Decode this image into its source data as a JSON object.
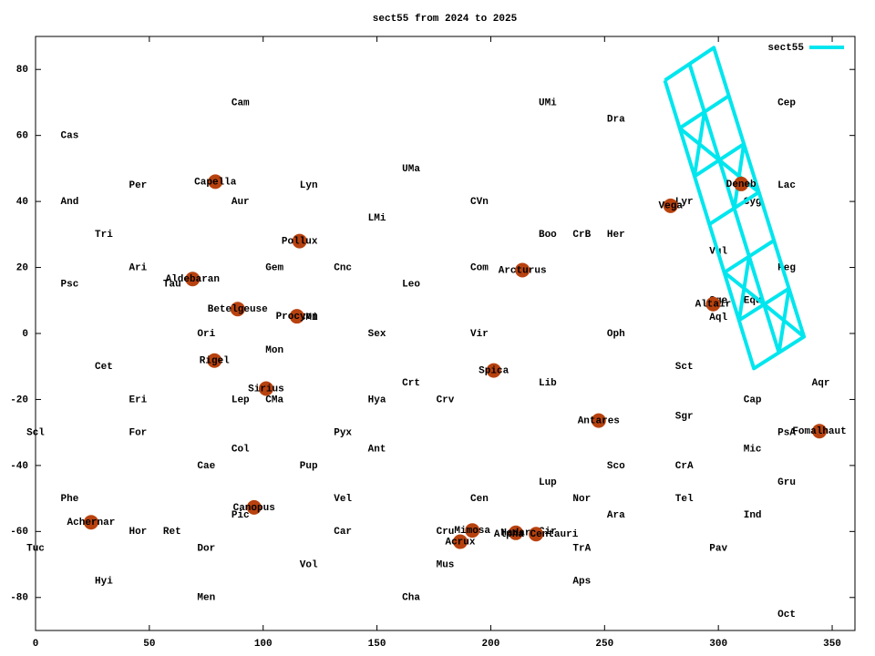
{
  "chart_data": {
    "type": "scatter",
    "title": "sect55 from 2024 to 2025",
    "xlim": [
      0,
      360
    ],
    "ylim": [
      -90,
      90
    ],
    "xticks": [
      0,
      50,
      100,
      150,
      200,
      250,
      300,
      350
    ],
    "yticks": [
      -80,
      -60,
      -40,
      -20,
      0,
      20,
      40,
      60,
      80
    ],
    "legend": "top right",
    "star_color": "#b8420f",
    "series": [
      {
        "name": "sect55",
        "color": "#00e6ee",
        "x": [
          276.5,
          315.6,
          337.6,
          298.0,
          276.5,
          null,
          287.3,
          326.6,
          null,
          283.0,
          304.6,
          null,
          289.5,
          311.2,
          null,
          296.1,
          317.8,
          null,
          302.6,
          324.4,
          null,
          309.1,
          331.0,
          null,
          283.0,
          300.4,
          null,
          293.9,
          289.5,
          null,
          300.4,
          317.8,
          null,
          311.2,
          307.0,
          null,
          302.6,
          320.1,
          null,
          313.5,
          309.1,
          null,
          320.1,
          337.6,
          null,
          331.0,
          326.6
        ],
        "y": [
          76.7,
          -10.6,
          -1.0,
          86.6,
          76.7,
          null,
          81.7,
          -5.8,
          null,
          62.2,
          72.0,
          null,
          47.6,
          57.4,
          null,
          33.1,
          42.8,
          null,
          18.5,
          28.2,
          null,
          4.0,
          13.6,
          null,
          62.2,
          52.5,
          null,
          67.1,
          47.6,
          null,
          52.5,
          42.8,
          null,
          57.4,
          37.9,
          null,
          18.5,
          8.8,
          null,
          23.4,
          4.0,
          null,
          8.8,
          -1.0,
          null,
          13.6,
          -5.8
        ]
      }
    ],
    "stars": [
      {
        "name": "Capella",
        "x": 79,
        "y": 46
      },
      {
        "name": "Deneb",
        "x": 310,
        "y": 45.3
      },
      {
        "name": "Vega",
        "x": 279,
        "y": 38.7
      },
      {
        "name": "Pollux",
        "x": 116,
        "y": 28
      },
      {
        "name": "Aldebaran",
        "x": 69,
        "y": 16.5
      },
      {
        "name": "Arcturus",
        "x": 213.9,
        "y": 19.2
      },
      {
        "name": "Betelgeuse",
        "x": 88.8,
        "y": 7.4
      },
      {
        "name": "Procyon",
        "x": 114.8,
        "y": 5.2
      },
      {
        "name": "Altair",
        "x": 297.7,
        "y": 8.9
      },
      {
        "name": "Rigel",
        "x": 78.6,
        "y": -8.2
      },
      {
        "name": "Sirius",
        "x": 101.3,
        "y": -16.7
      },
      {
        "name": "Spica",
        "x": 201.3,
        "y": -11.2
      },
      {
        "name": "Antares",
        "x": 247.4,
        "y": -26.4
      },
      {
        "name": "Fomalhaut",
        "x": 344.4,
        "y": -29.6
      },
      {
        "name": "Canopus",
        "x": 96,
        "y": -52.7
      },
      {
        "name": "Achernar",
        "x": 24.4,
        "y": -57.2
      },
      {
        "name": "Mimosa",
        "x": 191.9,
        "y": -59.7
      },
      {
        "name": "Acrux",
        "x": 186.6,
        "y": -63.1
      },
      {
        "name": "Hadar",
        "x": 211,
        "y": -60.4
      },
      {
        "name": "Alpha Centauri",
        "x": 219.9,
        "y": -60.8
      }
    ],
    "labels": [
      {
        "text": "Cam",
        "x": 90,
        "y": 70
      },
      {
        "text": "UMi",
        "x": 225,
        "y": 70
      },
      {
        "text": "Cep",
        "x": 330,
        "y": 70
      },
      {
        "text": "Cas",
        "x": 15,
        "y": 60
      },
      {
        "text": "Dra",
        "x": 255,
        "y": 65
      },
      {
        "text": "UMa",
        "x": 165,
        "y": 50
      },
      {
        "text": "Per",
        "x": 45,
        "y": 45
      },
      {
        "text": "Lyn",
        "x": 120,
        "y": 45
      },
      {
        "text": "Lac",
        "x": 330,
        "y": 45
      },
      {
        "text": "And",
        "x": 15,
        "y": 40
      },
      {
        "text": "Aur",
        "x": 90,
        "y": 40
      },
      {
        "text": "CVn",
        "x": 195,
        "y": 40
      },
      {
        "text": "Lyr",
        "x": 285,
        "y": 40
      },
      {
        "text": "Cyg",
        "x": 315,
        "y": 40
      },
      {
        "text": "LMi",
        "x": 150,
        "y": 35
      },
      {
        "text": "Tri",
        "x": 30,
        "y": 30
      },
      {
        "text": "Boo",
        "x": 225,
        "y": 30
      },
      {
        "text": "CrB",
        "x": 240,
        "y": 30
      },
      {
        "text": "Her",
        "x": 255,
        "y": 30
      },
      {
        "text": "Vul",
        "x": 300,
        "y": 25
      },
      {
        "text": "Ari",
        "x": 45,
        "y": 20
      },
      {
        "text": "Gem",
        "x": 105,
        "y": 20
      },
      {
        "text": "Cnc",
        "x": 135,
        "y": 20
      },
      {
        "text": "Com",
        "x": 195,
        "y": 20
      },
      {
        "text": "Peg",
        "x": 330,
        "y": 20
      },
      {
        "text": "Psc",
        "x": 15,
        "y": 15
      },
      {
        "text": "Tau",
        "x": 60,
        "y": 15
      },
      {
        "text": "Leo",
        "x": 165,
        "y": 15
      },
      {
        "text": "Sge",
        "x": 300,
        "y": 10
      },
      {
        "text": "Equ",
        "x": 315,
        "y": 10
      },
      {
        "text": "CMi",
        "x": 120,
        "y": 5
      },
      {
        "text": "Aql",
        "x": 300,
        "y": 5
      },
      {
        "text": "Ori",
        "x": 75,
        "y": 0
      },
      {
        "text": "Sex",
        "x": 150,
        "y": 0
      },
      {
        "text": "Vir",
        "x": 195,
        "y": 0
      },
      {
        "text": "Oph",
        "x": 255,
        "y": 0
      },
      {
        "text": "Mon",
        "x": 105,
        "y": -5
      },
      {
        "text": "Cet",
        "x": 30,
        "y": -10
      },
      {
        "text": "Sct",
        "x": 285,
        "y": -10
      },
      {
        "text": "Crt",
        "x": 165,
        "y": -15
      },
      {
        "text": "Lib",
        "x": 225,
        "y": -15
      },
      {
        "text": "Aqr",
        "x": 345,
        "y": -15
      },
      {
        "text": "Eri",
        "x": 45,
        "y": -20
      },
      {
        "text": "Lep",
        "x": 90,
        "y": -20
      },
      {
        "text": "CMa",
        "x": 105,
        "y": -20
      },
      {
        "text": "Hya",
        "x": 150,
        "y": -20
      },
      {
        "text": "Crv",
        "x": 180,
        "y": -20
      },
      {
        "text": "Cap",
        "x": 315,
        "y": -20
      },
      {
        "text": "Sgr",
        "x": 285,
        "y": -25
      },
      {
        "text": "Scl",
        "x": 0,
        "y": -30
      },
      {
        "text": "For",
        "x": 45,
        "y": -30
      },
      {
        "text": "Pyx",
        "x": 135,
        "y": -30
      },
      {
        "text": "PsA",
        "x": 330,
        "y": -30
      },
      {
        "text": "Col",
        "x": 90,
        "y": -35
      },
      {
        "text": "Ant",
        "x": 150,
        "y": -35
      },
      {
        "text": "Mic",
        "x": 315,
        "y": -35
      },
      {
        "text": "Cae",
        "x": 75,
        "y": -40
      },
      {
        "text": "Pup",
        "x": 120,
        "y": -40
      },
      {
        "text": "Sco",
        "x": 255,
        "y": -40
      },
      {
        "text": "CrA",
        "x": 285,
        "y": -40
      },
      {
        "text": "Lup",
        "x": 225,
        "y": -45
      },
      {
        "text": "Gru",
        "x": 330,
        "y": -45
      },
      {
        "text": "Phe",
        "x": 15,
        "y": -50
      },
      {
        "text": "Vel",
        "x": 135,
        "y": -50
      },
      {
        "text": "Cen",
        "x": 195,
        "y": -50
      },
      {
        "text": "Nor",
        "x": 240,
        "y": -50
      },
      {
        "text": "Tel",
        "x": 285,
        "y": -50
      },
      {
        "text": "Pic",
        "x": 90,
        "y": -55
      },
      {
        "text": "Ara",
        "x": 255,
        "y": -55
      },
      {
        "text": "Ind",
        "x": 315,
        "y": -55
      },
      {
        "text": "Hor",
        "x": 45,
        "y": -60
      },
      {
        "text": "Ret",
        "x": 60,
        "y": -60
      },
      {
        "text": "Car",
        "x": 135,
        "y": -60
      },
      {
        "text": "Cru",
        "x": 180,
        "y": -60
      },
      {
        "text": "Cir",
        "x": 225,
        "y": -60
      },
      {
        "text": "Tuc",
        "x": 0,
        "y": -65
      },
      {
        "text": "Dor",
        "x": 75,
        "y": -65
      },
      {
        "text": "TrA",
        "x": 240,
        "y": -65
      },
      {
        "text": "Pav",
        "x": 300,
        "y": -65
      },
      {
        "text": "Vol",
        "x": 120,
        "y": -70
      },
      {
        "text": "Mus",
        "x": 180,
        "y": -70
      },
      {
        "text": "Hyi",
        "x": 30,
        "y": -75
      },
      {
        "text": "Aps",
        "x": 240,
        "y": -75
      },
      {
        "text": "Men",
        "x": 75,
        "y": -80
      },
      {
        "text": "Cha",
        "x": 165,
        "y": -80
      },
      {
        "text": "Oct",
        "x": 330,
        "y": -85
      }
    ]
  }
}
